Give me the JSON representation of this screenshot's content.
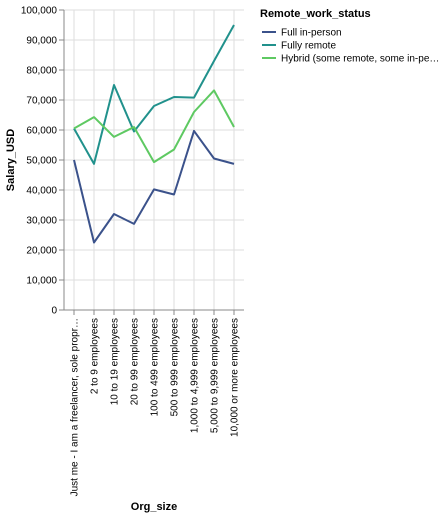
{
  "chart_data": {
    "type": "line",
    "xlabel": "Org_size",
    "ylabel": "Salary_USD",
    "ylim": [
      0,
      100000
    ],
    "y_ticks": [
      0,
      10000,
      20000,
      30000,
      40000,
      50000,
      60000,
      70000,
      80000,
      90000,
      100000
    ],
    "y_tick_labels": [
      "0",
      "10,000",
      "20,000",
      "30,000",
      "40,000",
      "50,000",
      "60,000",
      "70,000",
      "80,000",
      "90,000",
      "100,000"
    ],
    "grid": true,
    "legend_position": "top-right",
    "legend_title": "Remote_work_status",
    "categories": [
      "Just me - I am a freelancer, sole propr…",
      "2 to 9 employees",
      "10 to 19 employees",
      "20 to 99 employees",
      "100 to 499 employees",
      "500 to 999 employees",
      "1,000 to 4,999 employees",
      "5,000 to 9,999 employees",
      "10,000 or more employees"
    ],
    "series": [
      {
        "name": "Full in-person",
        "color": "#3b528b",
        "values": [
          50000,
          22500,
          32000,
          28700,
          40200,
          38500,
          59700,
          50500,
          48700
        ]
      },
      {
        "name": "Fully remote",
        "color": "#21918c",
        "values": [
          60500,
          48700,
          75000,
          59500,
          68000,
          71000,
          70800,
          83000,
          95000
        ]
      },
      {
        "name": "Hybrid (some remote, some in-pe…",
        "color": "#5ec962",
        "values": [
          60500,
          64300,
          57700,
          61000,
          49300,
          53500,
          66000,
          73200,
          61000
        ]
      }
    ]
  }
}
